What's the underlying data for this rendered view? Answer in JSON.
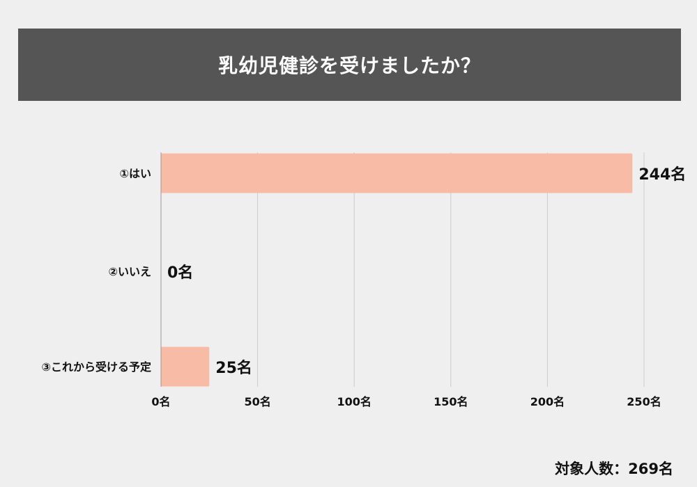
{
  "title": "乳幼児健診を受けましたか？",
  "footer": "対象人数：269名",
  "colors": {
    "background": "#efefef",
    "banner": "#555555",
    "bar": "#f8bca6",
    "grid": "#cccccc",
    "axis": "#999999",
    "text": "#111111"
  },
  "chart_data": {
    "type": "bar",
    "orientation": "horizontal",
    "categories": [
      "①はい",
      "②いいえ",
      "③これから受ける予定"
    ],
    "values": [
      244,
      0,
      25
    ],
    "value_labels": [
      "244名",
      "0名",
      "25名"
    ],
    "xlim": [
      0,
      250
    ],
    "xticks": [
      0,
      50,
      100,
      150,
      200,
      250
    ],
    "xtick_labels": [
      "0名",
      "50名",
      "100名",
      "150名",
      "200名",
      "250名"
    ],
    "grid": true,
    "legend": "none"
  }
}
